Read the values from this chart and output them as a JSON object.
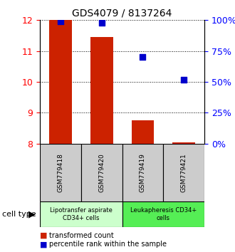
{
  "title": "GDS4079 / 8137264",
  "samples": [
    "GSM779418",
    "GSM779420",
    "GSM779419",
    "GSM779421"
  ],
  "transformed_counts": [
    12.0,
    11.45,
    8.75,
    8.05
  ],
  "percentile_ranks": [
    99.0,
    98.0,
    70.0,
    52.0
  ],
  "ylim_left": [
    8,
    12
  ],
  "ylim_right": [
    0,
    100
  ],
  "yticks_left": [
    8,
    9,
    10,
    11,
    12
  ],
  "yticks_right": [
    0,
    25,
    50,
    75,
    100
  ],
  "yticklabels_right": [
    "0%",
    "25%",
    "50%",
    "75%",
    "100%"
  ],
  "bar_color": "#cc2200",
  "dot_color": "#0000cc",
  "bar_width": 0.55,
  "groups": [
    {
      "label": "Lipotransfer aspirate\nCD34+ cells",
      "samples": [
        0,
        1
      ],
      "color": "#ccffcc"
    },
    {
      "label": "Leukapheresis CD34+\ncells",
      "samples": [
        2,
        3
      ],
      "color": "#55ee55"
    }
  ],
  "cell_type_label": "cell type",
  "legend_bar_label": "transformed count",
  "legend_dot_label": "percentile rank within the sample",
  "sample_box_color": "#cccccc",
  "grid_color": "#000000"
}
